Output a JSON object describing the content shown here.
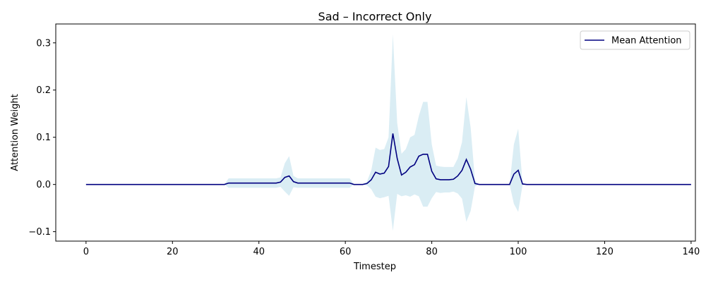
{
  "chart_data": {
    "type": "line",
    "title": "Sad – Incorrect Only",
    "xlabel": "Timestep",
    "ylabel": "Attention Weight",
    "xlim": [
      -7,
      141
    ],
    "ylim": [
      -0.12,
      0.34
    ],
    "x_ticks": [
      0,
      20,
      40,
      60,
      80,
      100,
      120,
      140
    ],
    "x_tick_labels": [
      "0",
      "20",
      "40",
      "60",
      "80",
      "100",
      "120",
      "140"
    ],
    "y_ticks": [
      -0.1,
      0.0,
      0.1,
      0.2,
      0.3
    ],
    "y_tick_labels": [
      "−0.1",
      "0.0",
      "0.1",
      "0.2",
      "0.3"
    ],
    "grid": false,
    "legend": {
      "position": "top-right",
      "entries": [
        "Mean Attention"
      ]
    },
    "colors": {
      "line": "#000080",
      "band": "#add8e6"
    },
    "series": [
      {
        "name": "Mean Attention",
        "x_start": 0,
        "x_step": 1,
        "values": [
          0,
          0,
          0,
          0,
          0,
          0,
          0,
          0,
          0,
          0,
          0,
          0,
          0,
          0,
          0,
          0,
          0,
          0,
          0,
          0,
          0,
          0,
          0,
          0,
          0,
          0,
          0,
          0,
          0,
          0,
          0,
          0,
          0,
          0.003,
          0.003,
          0.003,
          0.003,
          0.003,
          0.003,
          0.003,
          0.003,
          0.003,
          0.003,
          0.003,
          0.003,
          0.005,
          0.015,
          0.018,
          0.006,
          0.003,
          0.003,
          0.003,
          0.003,
          0.003,
          0.003,
          0.003,
          0.003,
          0.003,
          0.003,
          0.003,
          0.003,
          0.003,
          0,
          0,
          0,
          0.002,
          0.01,
          0.026,
          0.022,
          0.024,
          0.038,
          0.108,
          0.055,
          0.02,
          0.026,
          0.037,
          0.042,
          0.06,
          0.064,
          0.064,
          0.028,
          0.012,
          0.01,
          0.01,
          0.01,
          0.011,
          0.018,
          0.03,
          0.053,
          0.032,
          0.002,
          0,
          0,
          0,
          0,
          0,
          0,
          0,
          0,
          0.022,
          0.03,
          0.001,
          0,
          0,
          0,
          0,
          0,
          0,
          0,
          0,
          0,
          0,
          0,
          0,
          0,
          0,
          0,
          0,
          0,
          0,
          0,
          0,
          0,
          0,
          0,
          0,
          0,
          0,
          0,
          0,
          0,
          0,
          0,
          0,
          0,
          0,
          0,
          0,
          0,
          0,
          0
        ],
        "band_upper": [
          0,
          0,
          0,
          0,
          0,
          0,
          0,
          0,
          0,
          0,
          0,
          0,
          0,
          0,
          0,
          0,
          0,
          0,
          0,
          0,
          0,
          0,
          0,
          0,
          0,
          0,
          0,
          0,
          0,
          0,
          0,
          0,
          0,
          0.013,
          0.013,
          0.013,
          0.013,
          0.013,
          0.013,
          0.013,
          0.013,
          0.013,
          0.013,
          0.013,
          0.013,
          0.015,
          0.045,
          0.06,
          0.018,
          0.013,
          0.013,
          0.013,
          0.013,
          0.013,
          0.013,
          0.013,
          0.013,
          0.013,
          0.013,
          0.013,
          0.013,
          0.013,
          0,
          0,
          0,
          0.006,
          0.03,
          0.078,
          0.073,
          0.075,
          0.1,
          0.318,
          0.13,
          0.065,
          0.075,
          0.1,
          0.105,
          0.145,
          0.175,
          0.175,
          0.085,
          0.04,
          0.038,
          0.037,
          0.037,
          0.037,
          0.055,
          0.09,
          0.185,
          0.12,
          0.008,
          0,
          0,
          0,
          0,
          0,
          0,
          0,
          0,
          0.085,
          0.118,
          0.003,
          0,
          0,
          0,
          0,
          0,
          0,
          0,
          0,
          0,
          0,
          0,
          0,
          0,
          0,
          0,
          0,
          0,
          0,
          0,
          0,
          0,
          0,
          0,
          0,
          0,
          0,
          0,
          0,
          0,
          0,
          0,
          0,
          0,
          0,
          0,
          0,
          0,
          0,
          0
        ],
        "band_lower": [
          0,
          0,
          0,
          0,
          0,
          0,
          0,
          0,
          0,
          0,
          0,
          0,
          0,
          0,
          0,
          0,
          0,
          0,
          0,
          0,
          0,
          0,
          0,
          0,
          0,
          0,
          0,
          0,
          0,
          0,
          0,
          0,
          0,
          -0.007,
          -0.007,
          -0.007,
          -0.007,
          -0.007,
          -0.007,
          -0.007,
          -0.007,
          -0.007,
          -0.007,
          -0.007,
          -0.007,
          -0.005,
          -0.015,
          -0.024,
          -0.006,
          -0.007,
          -0.007,
          -0.007,
          -0.007,
          -0.007,
          -0.007,
          -0.007,
          -0.007,
          -0.007,
          -0.007,
          -0.007,
          -0.007,
          -0.007,
          0,
          0,
          0,
          -0.002,
          -0.01,
          -0.026,
          -0.029,
          -0.027,
          -0.024,
          -0.098,
          -0.02,
          -0.025,
          -0.023,
          -0.026,
          -0.021,
          -0.025,
          -0.047,
          -0.047,
          -0.029,
          -0.016,
          -0.018,
          -0.017,
          -0.017,
          -0.015,
          -0.019,
          -0.03,
          -0.079,
          -0.056,
          -0.004,
          0,
          0,
          0,
          0,
          0,
          0,
          0,
          0,
          -0.041,
          -0.058,
          -0.001,
          0,
          0,
          0,
          0,
          0,
          0,
          0,
          0,
          0,
          0,
          0,
          0,
          0,
          0,
          0,
          0,
          0,
          0,
          0,
          0,
          0,
          0,
          0,
          0,
          0,
          0,
          0,
          0,
          0,
          0,
          0,
          0,
          0,
          0,
          0,
          0,
          0,
          0,
          0
        ]
      }
    ]
  }
}
